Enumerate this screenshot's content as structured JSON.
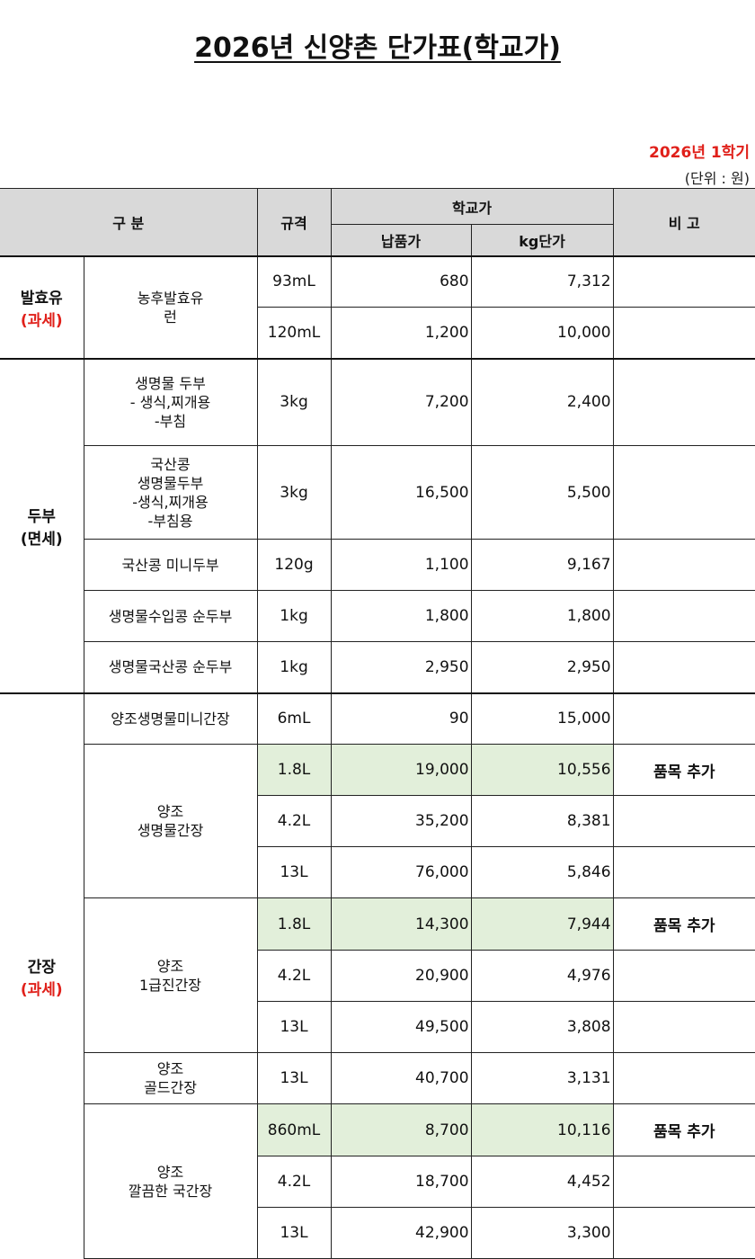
{
  "title": "2026년 신양촌 단가표(학교가)",
  "semester": "2026년  1학기",
  "unit": "(단위 : 원)",
  "header": {
    "category": "구 분",
    "spec": "규격",
    "school_price": "학교가",
    "delivery_price": "납품가",
    "kg_price": "kg단가",
    "note": "비   고"
  },
  "groups": [
    {
      "category": "발효유",
      "tax": "(과세)",
      "rows": [
        {
          "name": "농후발효유\n런",
          "spec": "93mL",
          "price": "680",
          "kg": "7,312",
          "note": ""
        },
        {
          "spec": "120mL",
          "price": "1,200",
          "kg": "10,000",
          "note": ""
        }
      ]
    },
    {
      "category": "두부",
      "tax": "(면세)",
      "rows": [
        {
          "name": "생명물 두부\n- 생식,찌개용\n-부침",
          "spec": "3kg",
          "price": "7,200",
          "kg": "2,400",
          "note": ""
        },
        {
          "name": "국산콩\n생명물두부\n-생식,찌개용\n-부침용",
          "spec": "3kg",
          "price": "16,500",
          "kg": "5,500",
          "note": ""
        },
        {
          "name": "국산콩 미니두부",
          "spec": "120g",
          "price": "1,100",
          "kg": "9,167",
          "note": ""
        },
        {
          "name": "생명물수입콩 순두부",
          "spec": "1kg",
          "price": "1,800",
          "kg": "1,800",
          "note": ""
        },
        {
          "name": "생명물국산콩 순두부",
          "spec": "1kg",
          "price": "2,950",
          "kg": "2,950",
          "note": ""
        }
      ]
    },
    {
      "category": "간장",
      "tax": "(과세)",
      "rows": [
        {
          "name": "양조생명물미니간장",
          "spec": "6mL",
          "price": "90",
          "kg": "15,000",
          "note": ""
        },
        {
          "name": "양조\n생명물간장",
          "spec": "1.8L",
          "price": "19,000",
          "kg": "10,556",
          "note": "품목 추가"
        },
        {
          "spec": "4.2L",
          "price": "35,200",
          "kg": "8,381",
          "note": ""
        },
        {
          "spec": "13L",
          "price": "76,000",
          "kg": "5,846",
          "note": ""
        },
        {
          "name": "양조\n1급진간장",
          "spec": "1.8L",
          "price": "14,300",
          "kg": "7,944",
          "note": "품목 추가"
        },
        {
          "spec": "4.2L",
          "price": "20,900",
          "kg": "4,976",
          "note": ""
        },
        {
          "spec": "13L",
          "price": "49,500",
          "kg": "3,808",
          "note": ""
        },
        {
          "name": "양조\n골드간장",
          "spec": "13L",
          "price": "40,700",
          "kg": "3,131",
          "note": ""
        },
        {
          "name": "양조\n깔끔한 국간장",
          "spec": "860mL",
          "price": "8,700",
          "kg": "10,116",
          "note": "품목 추가"
        },
        {
          "spec": "4.2L",
          "price": "18,700",
          "kg": "4,452",
          "note": ""
        },
        {
          "spec": "13L",
          "price": "42,900",
          "kg": "3,300",
          "note": ""
        }
      ]
    }
  ],
  "colors": {
    "tax_text": "#e0201a",
    "header_bg": "#d9d9d9",
    "highlight_bg": "#e2efda"
  }
}
